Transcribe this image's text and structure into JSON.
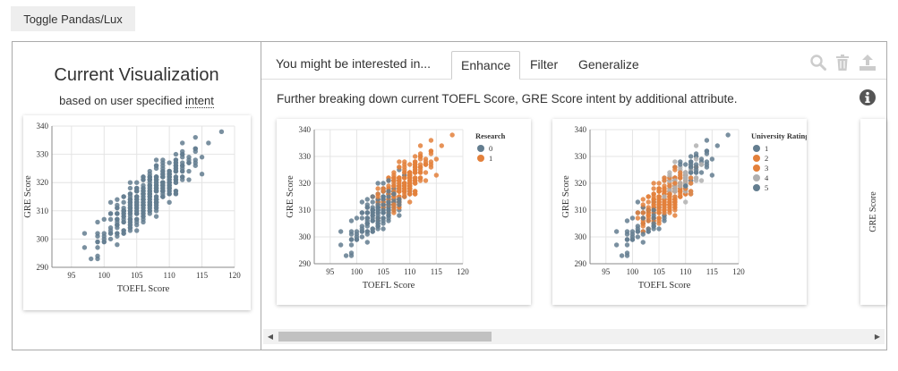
{
  "toggle_label": "Toggle Pandas/Lux",
  "current_vis": {
    "title": "Current Visualization",
    "subtitle_prefix": "based on user specified ",
    "subtitle_link": "intent"
  },
  "recommendations": {
    "header_label": "You might be interested in...",
    "tabs": [
      {
        "label": "Enhance",
        "active": true
      },
      {
        "label": "Filter",
        "active": false
      },
      {
        "label": "Generalize",
        "active": false
      }
    ],
    "description": "Further breaking down current TOEFL Score, GRE Score intent by additional attribute.",
    "toolbar_icons": [
      "search-icon",
      "trash-icon",
      "export-icon",
      "info-icon"
    ]
  },
  "scrollbar": {
    "left_arrow": "◀",
    "right_arrow": "▶"
  },
  "colors": {
    "steel": "#637d8f",
    "orange": "#e3803b",
    "rating_light": "#b0b0b0",
    "rating_mid": "#9aa8b3",
    "border": "#aaaaaa",
    "icon_gray": "#cccccc"
  },
  "chart_data": [
    {
      "type": "scatter",
      "id": "current",
      "xlabel": "TOEFL Score",
      "ylabel": "GRE Score",
      "xticks": [
        95,
        100,
        105,
        110,
        115,
        120
      ],
      "yticks": [
        290,
        300,
        310,
        320,
        330,
        340
      ],
      "xlim": [
        92,
        120
      ],
      "ylim": [
        290,
        340
      ],
      "grid": true,
      "legend": null,
      "color_by": null
    },
    {
      "type": "scatter",
      "id": "research",
      "xlabel": "TOEFL Score",
      "ylabel": "GRE Score",
      "xticks": [
        95,
        100,
        105,
        110,
        115,
        120
      ],
      "yticks": [
        290,
        300,
        310,
        320,
        330,
        340
      ],
      "xlim": [
        92,
        120
      ],
      "ylim": [
        290,
        340
      ],
      "grid": true,
      "legend": {
        "title": "Research",
        "placement": "top-right",
        "entries": [
          "0",
          "1"
        ]
      },
      "color_by": "research"
    },
    {
      "type": "scatter",
      "id": "rating",
      "xlabel": "TOEFL Score",
      "ylabel": "GRE Score",
      "xticks": [
        95,
        100,
        105,
        110,
        115,
        120
      ],
      "yticks": [
        290,
        300,
        310,
        320,
        330,
        340
      ],
      "xlim": [
        92,
        120
      ],
      "ylim": [
        290,
        340
      ],
      "grid": true,
      "legend": {
        "title": "University Rating",
        "placement": "top-right",
        "entries": [
          "1",
          "2",
          "3",
          "4",
          "5"
        ]
      },
      "color_by": "rating"
    },
    {
      "type": "scatter",
      "id": "partial",
      "ylabel": "GRE Score"
    }
  ]
}
